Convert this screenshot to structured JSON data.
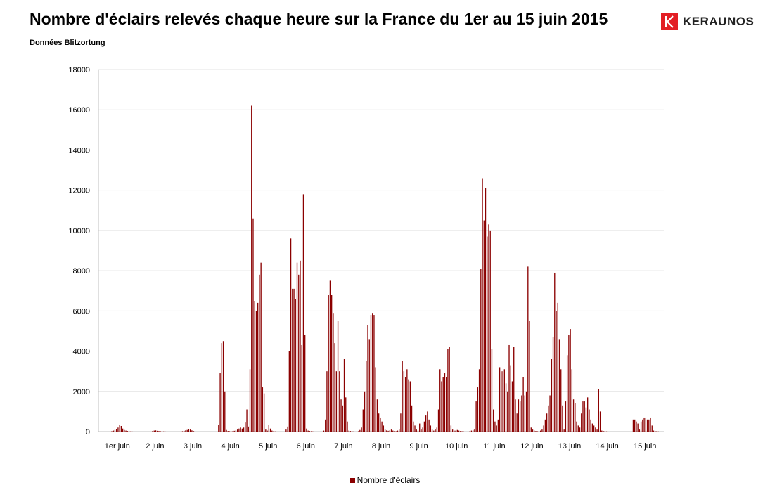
{
  "header": {
    "title": "Nombre d'éclairs relevés chaque heure sur la France du 1er au 15 juin 2015",
    "subtitle": "Données Blitzortung",
    "logo_text": "KERAUNOS",
    "logo_color": "#e31e24"
  },
  "chart_data": {
    "type": "bar",
    "title": "Nombre d'éclairs relevés chaque heure sur la France du 1er au 15 juin 2015",
    "subtitle": "Données Blitzortung",
    "bar_color": "#8b0000",
    "ylim": [
      0,
      18000
    ],
    "yticks": [
      0,
      2000,
      4000,
      6000,
      8000,
      10000,
      12000,
      14000,
      16000,
      18000
    ],
    "ytick_labels": [
      "0",
      "2000",
      "4000",
      "6000",
      "8000",
      "10000",
      "12000",
      "14000",
      "16000",
      "18000"
    ],
    "grid": true,
    "legend_position": "bottom",
    "day_labels": [
      "1er juin",
      "2 juin",
      "3 juin",
      "4 juin",
      "5 juin",
      "6 juin",
      "7 juin",
      "8 juin",
      "9 juin",
      "10 juin",
      "11 juin",
      "12 juin",
      "13 juin",
      "14 juin",
      "15 juin"
    ],
    "series": [
      {
        "name": "Nombre d'éclairs",
        "color": "#8b0000",
        "values": [
          0,
          0,
          0,
          0,
          0,
          0,
          0,
          0,
          20,
          50,
          80,
          120,
          200,
          350,
          280,
          150,
          80,
          50,
          30,
          20,
          10,
          5,
          0,
          0,
          0,
          0,
          0,
          0,
          0,
          0,
          0,
          0,
          0,
          0,
          30,
          50,
          60,
          40,
          30,
          20,
          10,
          10,
          5,
          0,
          0,
          0,
          0,
          0,
          0,
          0,
          0,
          0,
          0,
          20,
          40,
          60,
          80,
          120,
          100,
          60,
          30,
          10,
          0,
          0,
          0,
          0,
          0,
          0,
          0,
          0,
          0,
          0,
          0,
          0,
          0,
          0,
          350,
          2900,
          4400,
          4500,
          2000,
          80,
          30,
          20,
          10,
          20,
          40,
          60,
          100,
          150,
          200,
          150,
          200,
          450,
          1100,
          250,
          3100,
          16200,
          10600,
          6500,
          6000,
          6400,
          7800,
          8400,
          2200,
          1900,
          100,
          50,
          350,
          150,
          50,
          20,
          10,
          0,
          0,
          0,
          0,
          0,
          0,
          100,
          250,
          4000,
          9600,
          7100,
          7100,
          6600,
          8400,
          7800,
          8500,
          4300,
          11800,
          4800,
          150,
          50,
          30,
          20,
          10,
          0,
          0,
          0,
          0,
          0,
          0,
          50,
          600,
          3000,
          6800,
          7500,
          6800,
          5900,
          4400,
          3000,
          5500,
          3000,
          1600,
          1300,
          3600,
          1700,
          500,
          50,
          30,
          20,
          10,
          0,
          0,
          20,
          80,
          200,
          1100,
          2000,
          3500,
          5300,
          4600,
          5800,
          5900,
          5800,
          3200,
          1600,
          900,
          700,
          500,
          300,
          100,
          60,
          40,
          60,
          100,
          50,
          30,
          20,
          50,
          100,
          900,
          3500,
          3000,
          2700,
          3100,
          2600,
          2500,
          1300,
          500,
          300,
          100,
          50,
          400,
          100,
          200,
          500,
          800,
          1000,
          600,
          300,
          100,
          50,
          100,
          200,
          1100,
          3100,
          2500,
          2700,
          2900,
          2700,
          4100,
          4200,
          300,
          100,
          50,
          50,
          80,
          50,
          30,
          20,
          10,
          0,
          0,
          0,
          20,
          50,
          80,
          100,
          1500,
          2200,
          3100,
          8100,
          12600,
          10500,
          12100,
          9700,
          10300,
          10000,
          4100,
          1100,
          500,
          300,
          600,
          3200,
          3000,
          3000,
          3100,
          2400,
          2000,
          4300,
          3300,
          2500,
          4200,
          1600,
          900,
          1600,
          1500,
          1800,
          2700,
          1800,
          2000,
          8200,
          5500,
          200,
          100,
          50,
          30,
          20,
          10,
          50,
          100,
          300,
          600,
          900,
          1300,
          1800,
          3600,
          4700,
          7900,
          6000,
          6400,
          4600,
          3100,
          1300,
          100,
          1500,
          3800,
          4800,
          5100,
          3100,
          1600,
          1400,
          500,
          300,
          200,
          900,
          1500,
          1500,
          1200,
          1700,
          1100,
          600,
          400,
          300,
          200,
          100,
          2100,
          1000,
          50,
          30,
          20,
          10,
          0,
          0,
          0,
          0,
          0,
          0,
          0,
          0,
          0,
          0,
          0,
          0,
          0,
          0,
          0,
          0,
          600,
          600,
          500,
          400,
          100,
          500,
          600,
          700,
          700,
          600,
          600,
          700,
          300,
          50,
          30,
          20,
          10,
          0,
          0,
          0
        ]
      }
    ]
  }
}
